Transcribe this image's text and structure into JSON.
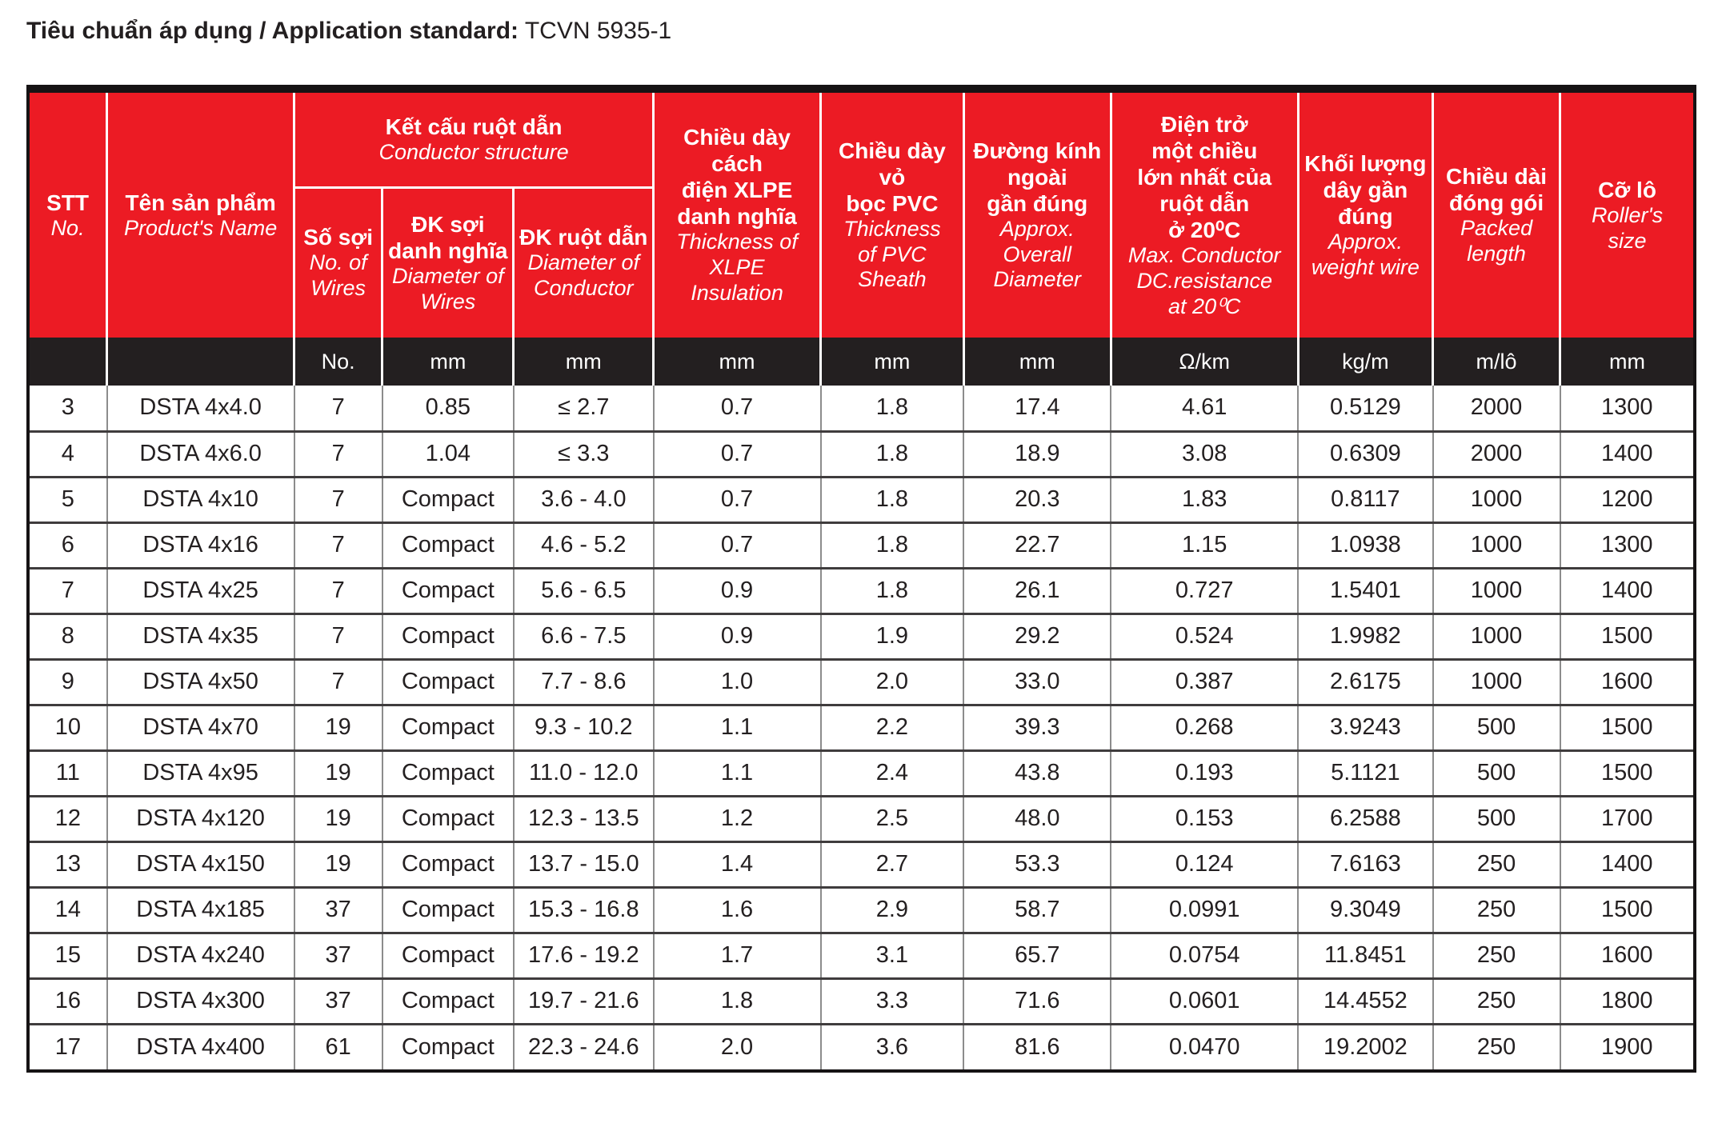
{
  "title": {
    "label": "Tiêu chuẩn áp dụng / Application standard:",
    "value": " TCVN 5935-1"
  },
  "colors": {
    "header_red": "#EC1B24",
    "unit_row_black": "#231F20",
    "header_text": "#FFFFFF",
    "body_text": "#231F20"
  },
  "table": {
    "headers": {
      "stt": {
        "vi": "STT",
        "en": "No."
      },
      "product_name": {
        "vi": "Tên sản phẩm",
        "en": "Product's Name"
      },
      "conductor_structure": {
        "vi": "Kết cấu ruột dẫn",
        "en": "Conductor structure"
      },
      "no_of_wires": {
        "vi": "Số sợi",
        "en": "No. of\nWires"
      },
      "wire_diameter": {
        "vi": "ĐK sợi\ndanh nghĩa",
        "en": "Diameter of\nWires"
      },
      "conductor_diameter": {
        "vi": "ĐK ruột dẫn",
        "en": "Diameter of\nConductor"
      },
      "xlpe_thickness": {
        "vi": "Chiều dày cách\nđiện XLPE\ndanh nghĩa",
        "en": "Thickness of\nXLPE\nInsulation"
      },
      "pvc_thickness": {
        "vi": "Chiều dày vỏ\nbọc PVC",
        "en": "Thickness\nof PVC\nSheath"
      },
      "overall_diameter": {
        "vi": "Đường kính\nngoài\ngần đúng",
        "en": "Approx.\nOverall\nDiameter"
      },
      "dc_resistance": {
        "vi": "Điện trở\nmột chiều\nlớn nhất của\nruột dẫn\nở 20⁰C",
        "en": "Max. Conductor\nDC.resistance\nat 20⁰C"
      },
      "weight": {
        "vi": "Khối lượng\ndây gần\nđúng",
        "en": "Approx.\nweight wire"
      },
      "packed_length": {
        "vi": "Chiều dài\nđóng gói",
        "en": "Packed\nlength"
      },
      "roller_size": {
        "vi": "Cỡ lô",
        "en": "Roller's\nsize"
      }
    },
    "units": [
      "",
      "",
      "No.",
      "mm",
      "mm",
      "mm",
      "mm",
      "mm",
      "Ω/km",
      "kg/m",
      "m/lô",
      "mm"
    ],
    "rows": [
      [
        "3",
        "DSTA 4x4.0",
        "7",
        "0.85",
        "≤ 2.7",
        "0.7",
        "1.8",
        "17.4",
        "4.61",
        "0.5129",
        "2000",
        "1300"
      ],
      [
        "4",
        "DSTA 4x6.0",
        "7",
        "1.04",
        "≤ 3.3",
        "0.7",
        "1.8",
        "18.9",
        "3.08",
        "0.6309",
        "2000",
        "1400"
      ],
      [
        "5",
        "DSTA 4x10",
        "7",
        "Compact",
        "3.6 - 4.0",
        "0.7",
        "1.8",
        "20.3",
        "1.83",
        "0.8117",
        "1000",
        "1200"
      ],
      [
        "6",
        "DSTA 4x16",
        "7",
        "Compact",
        "4.6 - 5.2",
        "0.7",
        "1.8",
        "22.7",
        "1.15",
        "1.0938",
        "1000",
        "1300"
      ],
      [
        "7",
        "DSTA 4x25",
        "7",
        "Compact",
        "5.6 - 6.5",
        "0.9",
        "1.8",
        "26.1",
        "0.727",
        "1.5401",
        "1000",
        "1400"
      ],
      [
        "8",
        "DSTA 4x35",
        "7",
        "Compact",
        "6.6 - 7.5",
        "0.9",
        "1.9",
        "29.2",
        "0.524",
        "1.9982",
        "1000",
        "1500"
      ],
      [
        "9",
        "DSTA 4x50",
        "7",
        "Compact",
        "7.7 - 8.6",
        "1.0",
        "2.0",
        "33.0",
        "0.387",
        "2.6175",
        "1000",
        "1600"
      ],
      [
        "10",
        "DSTA 4x70",
        "19",
        "Compact",
        "9.3 - 10.2",
        "1.1",
        "2.2",
        "39.3",
        "0.268",
        "3.9243",
        "500",
        "1500"
      ],
      [
        "11",
        "DSTA 4x95",
        "19",
        "Compact",
        "11.0 - 12.0",
        "1.1",
        "2.4",
        "43.8",
        "0.193",
        "5.1121",
        "500",
        "1500"
      ],
      [
        "12",
        "DSTA 4x120",
        "19",
        "Compact",
        "12.3 - 13.5",
        "1.2",
        "2.5",
        "48.0",
        "0.153",
        "6.2588",
        "500",
        "1700"
      ],
      [
        "13",
        "DSTA 4x150",
        "19",
        "Compact",
        "13.7 - 15.0",
        "1.4",
        "2.7",
        "53.3",
        "0.124",
        "7.6163",
        "250",
        "1400"
      ],
      [
        "14",
        "DSTA 4x185",
        "37",
        "Compact",
        "15.3 - 16.8",
        "1.6",
        "2.9",
        "58.7",
        "0.0991",
        "9.3049",
        "250",
        "1500"
      ],
      [
        "15",
        "DSTA 4x240",
        "37",
        "Compact",
        "17.6 - 19.2",
        "1.7",
        "3.1",
        "65.7",
        "0.0754",
        "11.8451",
        "250",
        "1600"
      ],
      [
        "16",
        "DSTA 4x300",
        "37",
        "Compact",
        "19.7 - 21.6",
        "1.8",
        "3.3",
        "71.6",
        "0.0601",
        "14.4552",
        "250",
        "1800"
      ],
      [
        "17",
        "DSTA 4x400",
        "61",
        "Compact",
        "22.3 - 24.6",
        "2.0",
        "3.6",
        "81.6",
        "0.0470",
        "19.2002",
        "250",
        "1900"
      ]
    ]
  }
}
